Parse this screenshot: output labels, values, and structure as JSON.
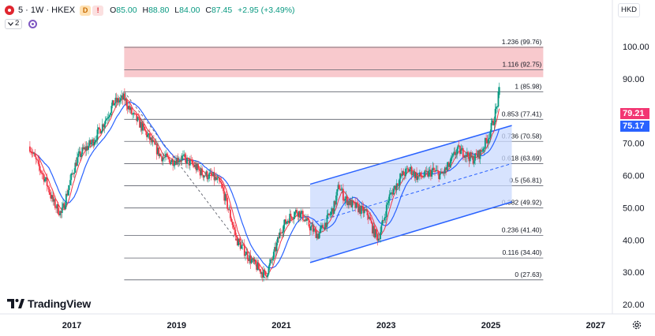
{
  "header": {
    "symbol": "5 · 1W · HKEX",
    "badge_d": "D",
    "badge_r": "!",
    "ohlc": [
      {
        "k": "O",
        "v": "85.00"
      },
      {
        "k": "H",
        "v": "88.80"
      },
      {
        "k": "L",
        "v": "84.00"
      },
      {
        "k": "C",
        "v": "87.45"
      }
    ],
    "change": "+2.95 (+3.49%)",
    "collapsed_count": "2",
    "currency": "HKD"
  },
  "logo_text": "TradingView",
  "price_tags": [
    {
      "label": "79.21",
      "value": 79.21,
      "color": "#f23672"
    },
    {
      "label": "75.17",
      "value": 75.17,
      "color": "#2962ff"
    }
  ],
  "chart_data": {
    "type": "candlestick",
    "y_axis": {
      "min": 16,
      "max": 106,
      "ticks": [
        "20.00",
        "30.00",
        "40.00",
        "50.00",
        "60.00",
        "70.00",
        "80.00",
        "90.00",
        "100.00"
      ]
    },
    "x_axis": {
      "start": 2016.2,
      "end": 2028.0,
      "ticks": [
        "2017",
        "2019",
        "2021",
        "2023",
        "2025",
        "2027"
      ]
    },
    "fibonacci": {
      "start_date": 2018.0,
      "end_date": 2026.0,
      "levels": [
        {
          "label": "1.236 (99.76)",
          "value": 99.76
        },
        {
          "label": "1.116 (92.75)",
          "value": 92.75
        },
        {
          "label": "1 (85.98)",
          "value": 85.98
        },
        {
          "label": "0.853 (77.41)",
          "value": 77.41
        },
        {
          "label": "0.736 (70.58)",
          "value": 70.58
        },
        {
          "label": "0.618 (63.69)",
          "value": 63.69
        },
        {
          "label": "0.5 (56.81)",
          "value": 56.81
        },
        {
          "label": "0.382 (49.92)",
          "value": 49.92
        },
        {
          "label": "0.236 (41.40)",
          "value": 41.4
        },
        {
          "label": "0.116 (34.40)",
          "value": 34.4
        },
        {
          "label": "0 (27.63)",
          "value": 27.63
        }
      ],
      "zone_low": 90.5,
      "zone_high": 100.0,
      "zone_color": "#f8c9cd"
    },
    "channel": {
      "upper": [
        [
          2021.55,
          57.3
        ],
        [
          2025.4,
          75.5
        ]
      ],
      "lower": [
        [
          2021.55,
          33.0
        ],
        [
          2025.4,
          51.8
        ]
      ],
      "mid": [
        [
          2021.55,
          45.1
        ],
        [
          2025.4,
          63.7
        ]
      ],
      "fill": "#c9dafd",
      "line": "#2962ff"
    },
    "trendline": [
      [
        2018.0,
        86.0
      ],
      [
        2020.7,
        28.0
      ]
    ],
    "key_points": [
      [
        2016.2,
        69.0
      ],
      [
        2016.3,
        65.0
      ],
      [
        2016.5,
        58.5
      ],
      [
        2016.65,
        51.5
      ],
      [
        2016.8,
        48.0
      ],
      [
        2016.9,
        54.0
      ],
      [
        2017.0,
        60.0
      ],
      [
        2017.1,
        65.0
      ],
      [
        2017.2,
        67.5
      ],
      [
        2017.4,
        70.5
      ],
      [
        2017.6,
        76.0
      ],
      [
        2017.8,
        82.5
      ],
      [
        2018.0,
        84.0
      ],
      [
        2018.15,
        79.0
      ],
      [
        2018.3,
        76.0
      ],
      [
        2018.5,
        71.0
      ],
      [
        2018.7,
        66.0
      ],
      [
        2018.9,
        64.5
      ],
      [
        2019.1,
        65.5
      ],
      [
        2019.3,
        63.5
      ],
      [
        2019.5,
        60.5
      ],
      [
        2019.7,
        59.5
      ],
      [
        2019.85,
        57.0
      ],
      [
        2020.0,
        49.0
      ],
      [
        2020.15,
        40.0
      ],
      [
        2020.3,
        36.5
      ],
      [
        2020.45,
        33.0
      ],
      [
        2020.6,
        30.5
      ],
      [
        2020.7,
        29.0
      ],
      [
        2020.85,
        35.0
      ],
      [
        2021.0,
        43.5
      ],
      [
        2021.15,
        47.0
      ],
      [
        2021.3,
        49.0
      ],
      [
        2021.4,
        47.5
      ],
      [
        2021.55,
        44.0
      ],
      [
        2021.7,
        41.5
      ],
      [
        2021.85,
        45.5
      ],
      [
        2022.0,
        50.0
      ],
      [
        2022.1,
        57.0
      ],
      [
        2022.2,
        53.0
      ],
      [
        2022.35,
        51.0
      ],
      [
        2022.5,
        49.5
      ],
      [
        2022.65,
        48.0
      ],
      [
        2022.75,
        43.0
      ],
      [
        2022.85,
        40.5
      ],
      [
        2022.95,
        46.0
      ],
      [
        2023.05,
        53.0
      ],
      [
        2023.15,
        56.0
      ],
      [
        2023.3,
        60.0
      ],
      [
        2023.45,
        62.0
      ],
      [
        2023.6,
        59.5
      ],
      [
        2023.75,
        60.0
      ],
      [
        2023.9,
        61.5
      ],
      [
        2024.05,
        60.0
      ],
      [
        2024.2,
        63.0
      ],
      [
        2024.35,
        68.0
      ],
      [
        2024.5,
        67.0
      ],
      [
        2024.65,
        65.0
      ],
      [
        2024.8,
        67.0
      ],
      [
        2024.95,
        72.0
      ],
      [
        2025.05,
        77.0
      ],
      [
        2025.12,
        82.0
      ],
      [
        2025.17,
        87.45
      ]
    ],
    "ma_fast_color": "#f23645",
    "ma_slow_color": "#2962ff",
    "candle_up_color": "#089981",
    "candle_down_color": "#f23645"
  }
}
